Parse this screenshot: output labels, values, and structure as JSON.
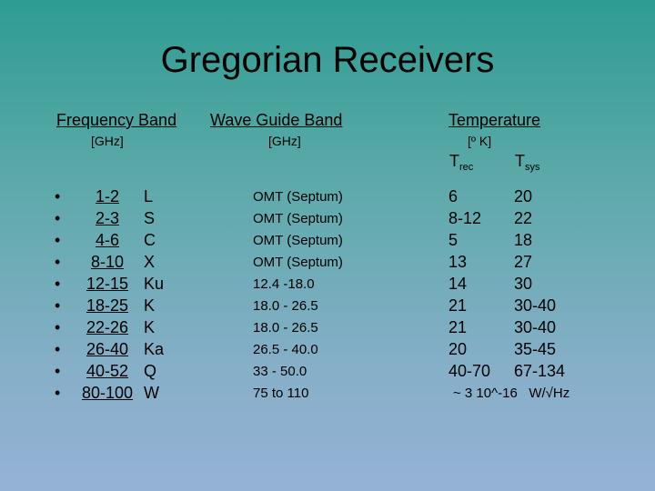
{
  "title": "Gregorian Receivers",
  "frequency_band": {
    "header": "Frequency Band",
    "unit": "[GHz]",
    "rows": [
      {
        "range": "1-2",
        "letter": "L"
      },
      {
        "range": "2-3",
        "letter": "S"
      },
      {
        "range": "4-6",
        "letter": "C"
      },
      {
        "range": "8-10",
        "letter": "X"
      },
      {
        "range": "12-15",
        "letter": "Ku"
      },
      {
        "range": "18-25",
        "letter": "K"
      },
      {
        "range": "22-26",
        "letter": "K"
      },
      {
        "range": "26-40",
        "letter": "Ka"
      },
      {
        "range": "40-52",
        "letter": "Q"
      },
      {
        "range": "80-100",
        "letter": "W"
      }
    ]
  },
  "wave_guide_band": {
    "header": "Wave Guide Band",
    "unit": "[GHz]",
    "rows": [
      "OMT (Septum)",
      "OMT (Septum)",
      "OMT (Septum)",
      "OMT (Septum)",
      "12.4 -18.0",
      "18.0 - 26.5",
      "18.0 - 26.5",
      "26.5 - 40.0",
      "33 - 50.0",
      "75 to 110"
    ]
  },
  "temperature": {
    "header": "Temperature",
    "unit": "[º K]",
    "trec": {
      "symbol": "T",
      "subscript": "rec"
    },
    "tsys": {
      "symbol": "T",
      "subscript": "sys"
    },
    "rows": [
      {
        "trec": "6",
        "tsys": "20"
      },
      {
        "trec": "8-12",
        "tsys": "22"
      },
      {
        "trec": "5",
        "tsys": "18"
      },
      {
        "trec": "13",
        "tsys": "27"
      },
      {
        "trec": "14",
        "tsys": "30"
      },
      {
        "trec": "21",
        "tsys": "30-40"
      },
      {
        "trec": "21",
        "tsys": "30-40"
      },
      {
        "trec": "20",
        "tsys": "35-45"
      },
      {
        "trec": "40-70",
        "tsys": "67-134"
      }
    ],
    "note": "~ 3 10^-16   W/√Hz"
  }
}
